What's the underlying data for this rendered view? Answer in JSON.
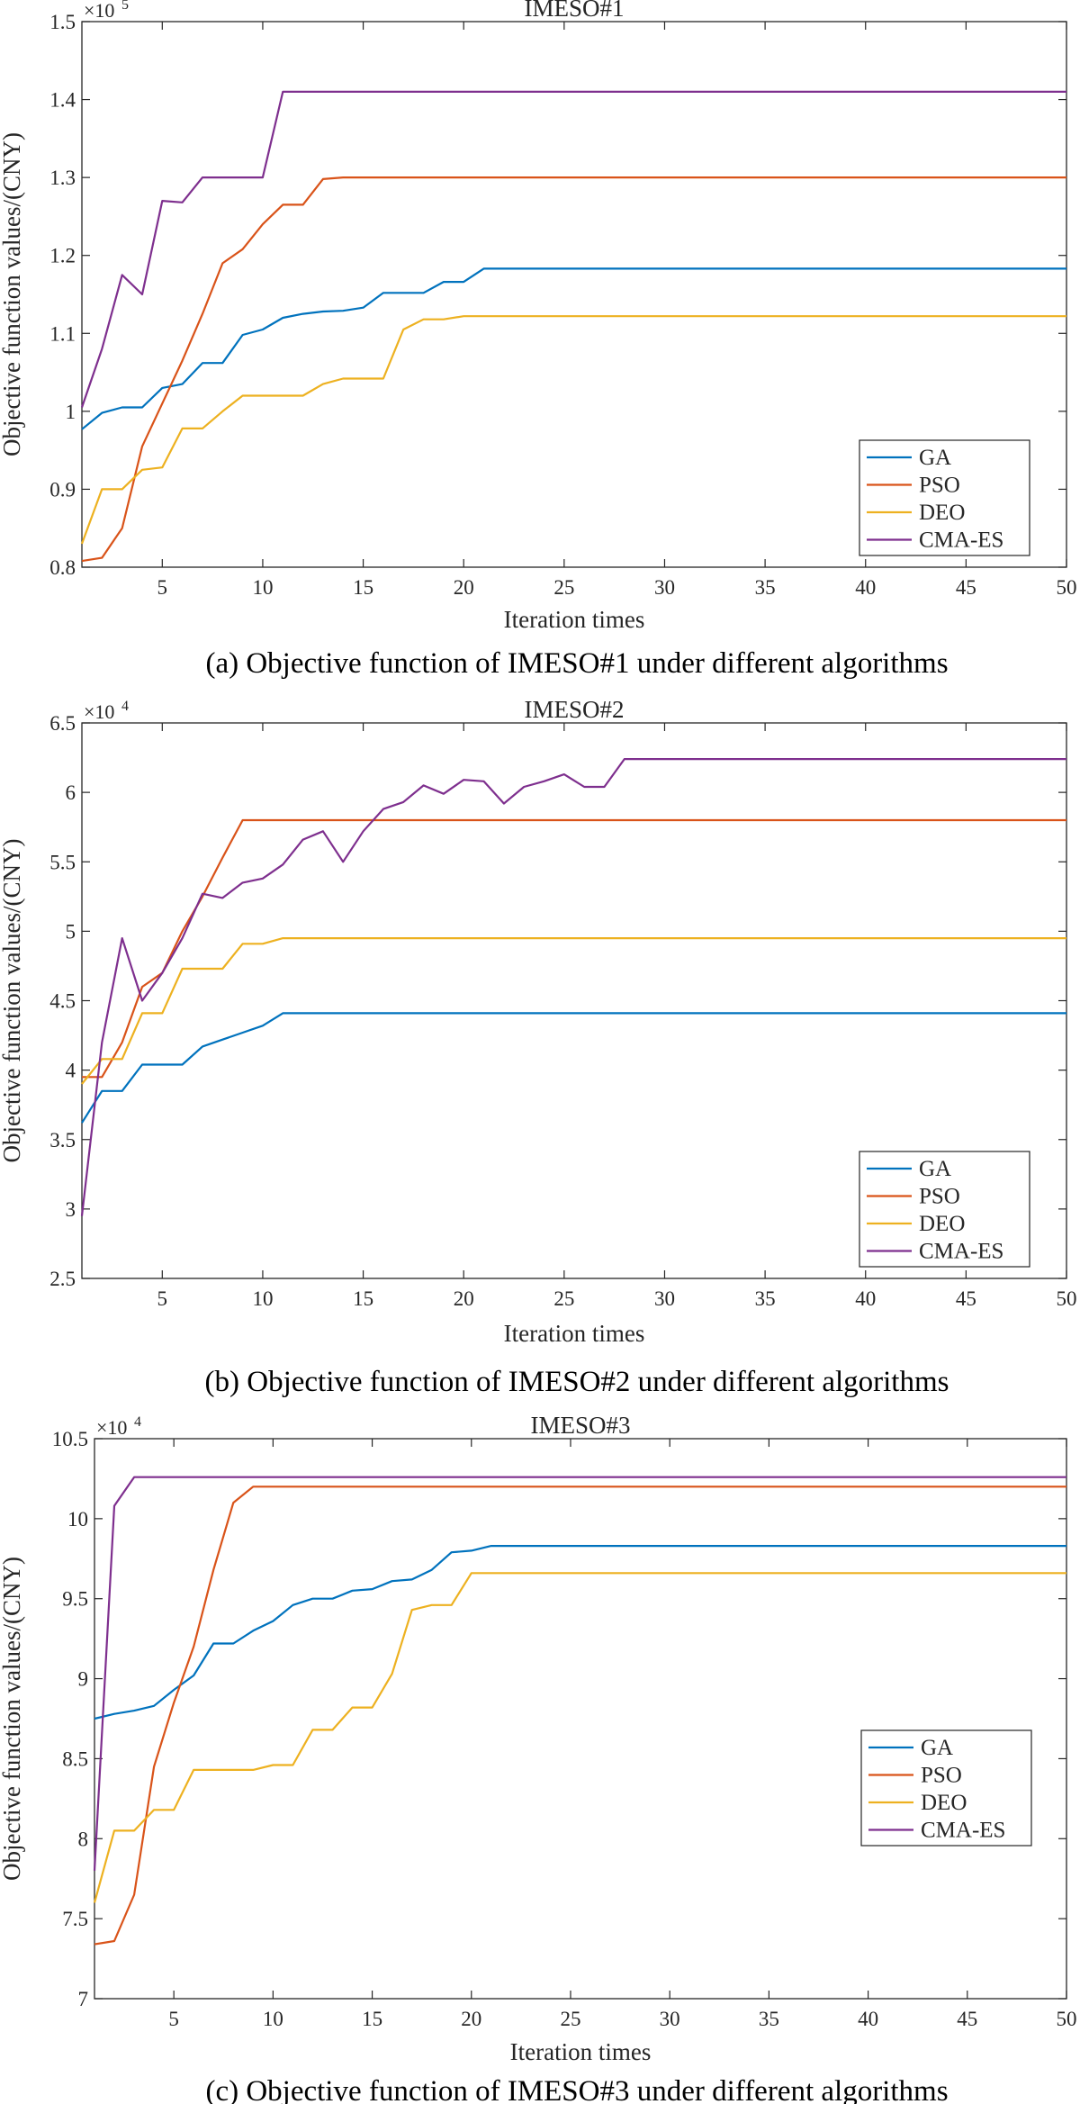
{
  "colors": {
    "GA": "#0072BD",
    "PSO": "#D95319",
    "DEO": "#EDB120",
    "CMA-ES": "#7E2F8E",
    "axis": "#262626"
  },
  "chart_data": [
    {
      "type": "line",
      "title": "IMESO#1",
      "caption": "(a) Objective function of IMESO#1 under different algorithms",
      "xlabel": "Iteration times",
      "ylabel": "Objective function values/(CNY)",
      "y_multiplier": "×10",
      "y_exponent": "5",
      "xlim": [
        1,
        50
      ],
      "ylim": [
        0.8,
        1.5
      ],
      "xticks": [
        5,
        10,
        15,
        20,
        25,
        30,
        35,
        40,
        45,
        50
      ],
      "yticks": [
        0.8,
        0.9,
        1,
        1.1,
        1.2,
        1.3,
        1.4,
        1.5
      ],
      "ytick_labels": [
        "0.8",
        "0.9",
        "1",
        "1.1",
        "1.2",
        "1.3",
        "1.4",
        "1.5"
      ],
      "legend_position": "bottom-right",
      "series": [
        {
          "name": "GA",
          "x": [
            1,
            2,
            3,
            4,
            5,
            6,
            7,
            8,
            9,
            10,
            11,
            12,
            13,
            14,
            15,
            16,
            17,
            18,
            19,
            20,
            21,
            50
          ],
          "y": [
            0.977,
            0.998,
            1.005,
            1.005,
            1.03,
            1.035,
            1.062,
            1.062,
            1.098,
            1.105,
            1.12,
            1.125,
            1.128,
            1.129,
            1.133,
            1.152,
            1.152,
            1.152,
            1.166,
            1.166,
            1.183,
            1.183
          ]
        },
        {
          "name": "PSO",
          "x": [
            1,
            2,
            3,
            4,
            5,
            6,
            7,
            8,
            9,
            10,
            11,
            12,
            13,
            14,
            50
          ],
          "y": [
            0.808,
            0.812,
            0.85,
            0.955,
            1.01,
            1.065,
            1.125,
            1.19,
            1.208,
            1.24,
            1.265,
            1.265,
            1.298,
            1.3,
            1.3
          ]
        },
        {
          "name": "DEO",
          "x": [
            1,
            2,
            3,
            4,
            5,
            6,
            7,
            8,
            9,
            10,
            11,
            12,
            13,
            14,
            15,
            16,
            17,
            18,
            19,
            20,
            50
          ],
          "y": [
            0.83,
            0.9,
            0.9,
            0.925,
            0.928,
            0.978,
            0.978,
            1.0,
            1.02,
            1.02,
            1.02,
            1.02,
            1.035,
            1.042,
            1.042,
            1.042,
            1.105,
            1.118,
            1.118,
            1.122,
            1.122
          ]
        },
        {
          "name": "CMA-ES",
          "x": [
            1,
            2,
            3,
            4,
            5,
            6,
            7,
            8,
            9,
            10,
            11,
            50
          ],
          "y": [
            1.005,
            1.08,
            1.175,
            1.15,
            1.27,
            1.268,
            1.3,
            1.3,
            1.3,
            1.3,
            1.41,
            1.41
          ]
        }
      ]
    },
    {
      "type": "line",
      "title": "IMESO#2",
      "caption": "(b) Objective function of IMESO#2 under different algorithms",
      "xlabel": "Iteration times",
      "ylabel": "Objective function values/(CNY)",
      "y_multiplier": "×10",
      "y_exponent": "4",
      "xlim": [
        1,
        50
      ],
      "ylim": [
        2.5,
        6.5
      ],
      "xticks": [
        5,
        10,
        15,
        20,
        25,
        30,
        35,
        40,
        45,
        50
      ],
      "yticks": [
        2.5,
        3,
        3.5,
        4,
        4.5,
        5,
        5.5,
        6,
        6.5
      ],
      "ytick_labels": [
        "2.5",
        "3",
        "3.5",
        "4",
        "4.5",
        "5",
        "5.5",
        "6",
        "6.5"
      ],
      "legend_position": "bottom-right",
      "series": [
        {
          "name": "GA",
          "x": [
            1,
            2,
            3,
            4,
            5,
            6,
            7,
            8,
            9,
            10,
            11,
            50
          ],
          "y": [
            3.62,
            3.85,
            3.85,
            4.04,
            4.04,
            4.04,
            4.17,
            4.22,
            4.27,
            4.32,
            4.41,
            4.41
          ]
        },
        {
          "name": "PSO",
          "x": [
            1,
            2,
            3,
            4,
            5,
            6,
            7,
            8,
            9,
            50
          ],
          "y": [
            3.95,
            3.95,
            4.2,
            4.6,
            4.7,
            5.0,
            5.25,
            5.53,
            5.8,
            5.8
          ]
        },
        {
          "name": "DEO",
          "x": [
            1,
            2,
            3,
            4,
            5,
            6,
            7,
            8,
            9,
            10,
            11,
            50
          ],
          "y": [
            3.9,
            4.08,
            4.08,
            4.41,
            4.41,
            4.73,
            4.73,
            4.73,
            4.91,
            4.91,
            4.95,
            4.95
          ]
        },
        {
          "name": "CMA-ES",
          "x": [
            1,
            2,
            3,
            4,
            5,
            6,
            7,
            8,
            9,
            10,
            11,
            12,
            13,
            14,
            15,
            16,
            17,
            18,
            19,
            20,
            21,
            22,
            23,
            24,
            25,
            26,
            27,
            28,
            50
          ],
          "y": [
            2.95,
            4.2,
            4.95,
            4.5,
            4.7,
            4.95,
            5.27,
            5.24,
            5.35,
            5.38,
            5.48,
            5.66,
            5.72,
            5.5,
            5.72,
            5.88,
            5.93,
            6.05,
            5.99,
            6.09,
            6.08,
            5.92,
            6.04,
            6.08,
            6.13,
            6.04,
            6.04,
            6.24,
            6.24
          ]
        }
      ]
    },
    {
      "type": "line",
      "title": "IMESO#3",
      "caption": "(c) Objective function of IMESO#3 under different algorithms",
      "xlabel": "Iteration times",
      "ylabel": "Objective function values/(CNY)",
      "y_multiplier": "×10",
      "y_exponent": "4",
      "xlim": [
        1,
        50
      ],
      "ylim": [
        7,
        10.5
      ],
      "xticks": [
        5,
        10,
        15,
        20,
        25,
        30,
        35,
        40,
        45,
        50
      ],
      "yticks": [
        7,
        7.5,
        8,
        8.5,
        9,
        9.5,
        10,
        10.5
      ],
      "ytick_labels": [
        "7",
        "7.5",
        "8",
        "8.5",
        "9",
        "9.5",
        "10",
        "10.5"
      ],
      "legend_position": "bottom-right",
      "series": [
        {
          "name": "GA",
          "x": [
            1,
            2,
            3,
            4,
            5,
            6,
            7,
            8,
            9,
            10,
            11,
            12,
            13,
            14,
            15,
            16,
            17,
            18,
            19,
            20,
            21,
            50
          ],
          "y": [
            8.75,
            8.78,
            8.8,
            8.83,
            8.93,
            9.02,
            9.22,
            9.22,
            9.3,
            9.36,
            9.46,
            9.5,
            9.5,
            9.55,
            9.56,
            9.61,
            9.62,
            9.68,
            9.79,
            9.8,
            9.83,
            9.83
          ]
        },
        {
          "name": "PSO",
          "x": [
            1,
            2,
            3,
            4,
            5,
            6,
            7,
            8,
            9,
            50
          ],
          "y": [
            7.34,
            7.36,
            7.65,
            8.45,
            8.85,
            9.2,
            9.68,
            10.1,
            10.2,
            10.2
          ]
        },
        {
          "name": "DEO",
          "x": [
            1,
            2,
            3,
            4,
            5,
            6,
            7,
            8,
            9,
            10,
            11,
            12,
            13,
            14,
            15,
            16,
            17,
            18,
            19,
            20,
            50
          ],
          "y": [
            7.6,
            8.05,
            8.05,
            8.18,
            8.18,
            8.43,
            8.43,
            8.43,
            8.43,
            8.46,
            8.46,
            8.68,
            8.68,
            8.82,
            8.82,
            9.03,
            9.43,
            9.46,
            9.46,
            9.66,
            9.66
          ]
        },
        {
          "name": "CMA-ES",
          "x": [
            1,
            2,
            3,
            50
          ],
          "y": [
            7.8,
            10.08,
            10.26,
            10.26
          ]
        }
      ]
    }
  ]
}
